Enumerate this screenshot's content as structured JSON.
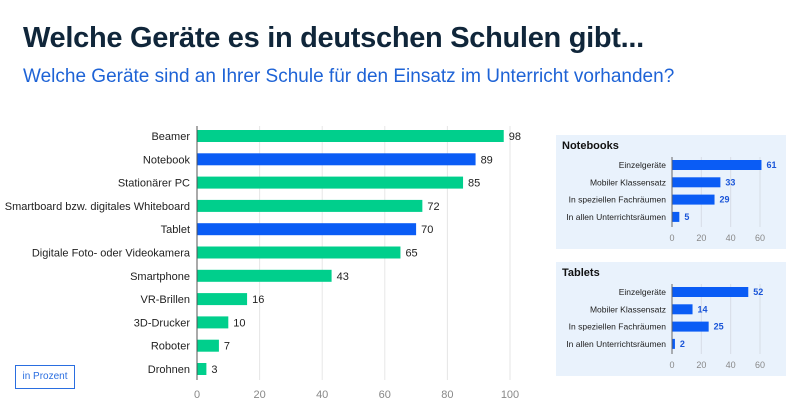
{
  "title": "Welche Geräte es in deutschen Schulen gibt...",
  "subtitle": "Welche Geräte sind an Ihrer Schule für den Einsatz im Unterricht vorhanden?",
  "unit_label": "in Prozent",
  "colors": {
    "green": "#00cf8c",
    "blue": "#0a5cf5",
    "panel_bg": "#e9f2fc"
  },
  "chart_data": [
    {
      "type": "bar",
      "orientation": "horizontal",
      "categories": [
        "Beamer",
        "Notebook",
        "Stationärer PC",
        "Smartboard bzw. digitales Whiteboard",
        "Tablet",
        "Digitale Foto- oder Videokamera",
        "Smartphone",
        "VR-Brillen",
        "3D-Drucker",
        "Roboter",
        "Drohnen"
      ],
      "values": [
        98,
        89,
        85,
        72,
        70,
        65,
        43,
        16,
        10,
        7,
        3
      ],
      "highlight": [
        false,
        true,
        false,
        false,
        true,
        false,
        false,
        false,
        false,
        false,
        false
      ],
      "xlim": [
        0,
        100
      ],
      "xticks": [
        0,
        20,
        40,
        60,
        80,
        100
      ],
      "grid": true
    },
    {
      "type": "bar",
      "orientation": "horizontal",
      "title": "Notebooks",
      "categories": [
        "Einzelgeräte",
        "Mobiler Klassensatz",
        "In speziellen Fachräumen",
        "In allen Unterrichtsräumen"
      ],
      "values": [
        61,
        33,
        29,
        5
      ],
      "xlim": [
        0,
        70
      ],
      "xticks": [
        0,
        20,
        40,
        60
      ],
      "grid": true
    },
    {
      "type": "bar",
      "orientation": "horizontal",
      "title": "Tablets",
      "categories": [
        "Einzelgeräte",
        "Mobiler Klassensatz",
        "In speziellen Fachräumen",
        "In allen Unterrichtsräumen"
      ],
      "values": [
        52,
        14,
        25,
        2
      ],
      "xlim": [
        0,
        70
      ],
      "xticks": [
        0,
        20,
        40,
        60
      ],
      "grid": true
    }
  ]
}
